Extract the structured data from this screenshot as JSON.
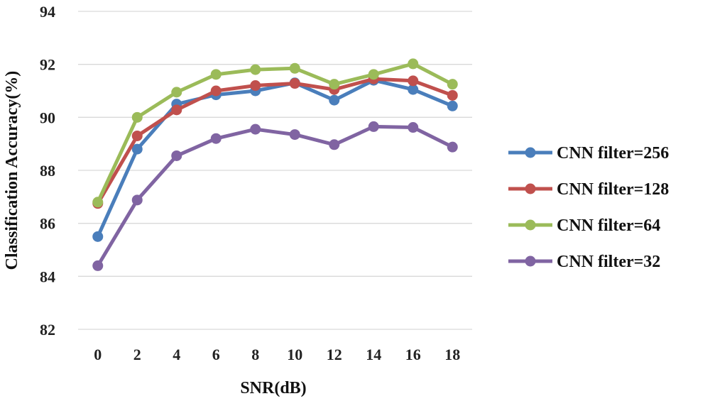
{
  "chart_data": {
    "type": "line",
    "title": "",
    "xlabel": "SNR(dB)",
    "ylabel": "Classification Accuracy(%)",
    "x": [
      0,
      2,
      4,
      6,
      8,
      10,
      12,
      14,
      16,
      18
    ],
    "x_tick_labels": [
      "0",
      "2",
      "4",
      "6",
      "8",
      "10",
      "12",
      "14",
      "16",
      "18"
    ],
    "ylim": [
      82,
      94
    ],
    "y_tick_labels": [
      "82",
      "84",
      "86",
      "88",
      "90",
      "92",
      "94"
    ],
    "grid": true,
    "legend_position": "right",
    "series": [
      {
        "name": "CNN filter=256",
        "color": "#4a7ebb",
        "values": [
          85.5,
          88.8,
          90.5,
          90.85,
          91.0,
          91.3,
          90.65,
          91.4,
          91.05,
          90.43
        ]
      },
      {
        "name": "CNN filter=128",
        "color": "#c0504d",
        "values": [
          86.75,
          89.3,
          90.28,
          91.0,
          91.2,
          91.28,
          91.05,
          91.45,
          91.38,
          90.83
        ]
      },
      {
        "name": "CNN filter=64",
        "color": "#9bbb59",
        "values": [
          86.8,
          90.0,
          90.95,
          91.62,
          91.8,
          91.85,
          91.25,
          91.62,
          92.02,
          91.25
        ]
      },
      {
        "name": "CNN filter=32",
        "color": "#8064a2",
        "values": [
          84.4,
          86.88,
          88.55,
          89.2,
          89.55,
          89.35,
          88.97,
          89.65,
          89.62,
          88.88
        ]
      }
    ]
  }
}
